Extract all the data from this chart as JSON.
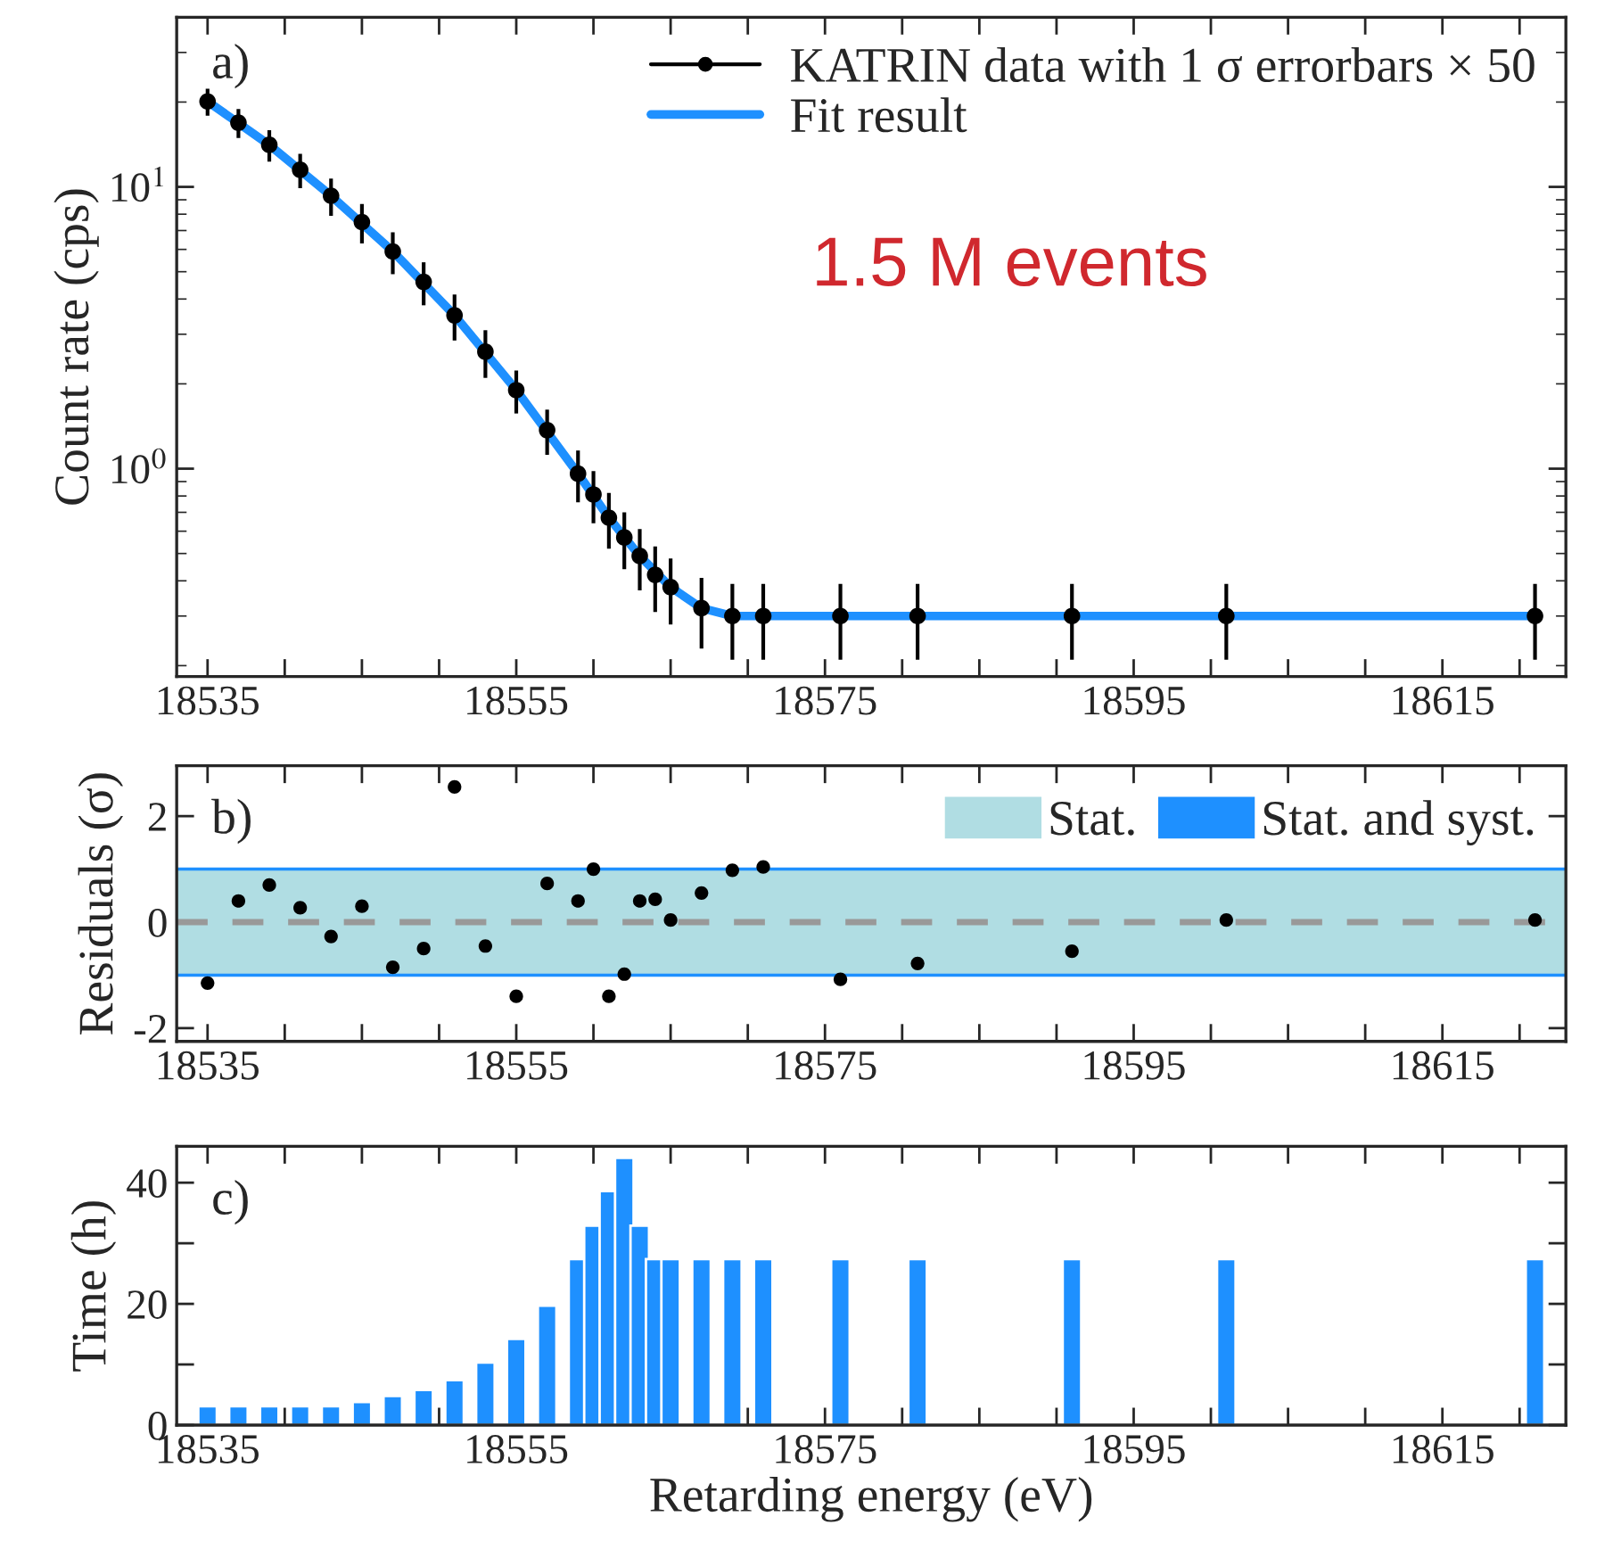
{
  "chart_data": [
    {
      "type": "scatter",
      "ylabel": "Count rate (cps)",
      "log": "y",
      "legend": "top right",
      "xlim": [
        18533,
        18623
      ],
      "xticks": [
        18535,
        {
          "value": 18540,
          "label": null
        },
        {
          "value": 18545,
          "label": null
        },
        {
          "value": 18550,
          "label": null
        },
        18555,
        {
          "value": 18560,
          "label": null
        },
        {
          "value": 18565,
          "label": null
        },
        {
          "value": 18570,
          "label": null
        },
        18575,
        {
          "value": 18580,
          "label": null
        },
        {
          "value": 18585,
          "label": null
        },
        {
          "value": 18590,
          "label": null
        },
        18595,
        {
          "value": 18600,
          "label": null
        },
        {
          "value": 18605,
          "label": null
        },
        {
          "value": 18610,
          "label": null
        },
        18615,
        {
          "value": 18620,
          "label": null
        }
      ],
      "ylim": [
        0.183,
        40
      ],
      "yticks": [
        {
          "value": 1,
          "label": "10$^{0}$"
        },
        {
          "value": 10,
          "label": "10$^{1}$"
        }
      ],
      "annotations": [
        "a)",
        "1.5 M events"
      ],
      "series": [
        {
          "name": "KATRIN data with 1 σ errorbars × 50",
          "type": "scatter",
          "marker": "circle",
          "color": "#000000",
          "x": [
            18535,
            18537,
            18539,
            18541,
            18543,
            18545,
            18547,
            18549,
            18551,
            18553,
            18555,
            18557,
            18559,
            18560,
            18561,
            18562,
            18563,
            18564,
            18565,
            18567,
            18569,
            18571,
            18576,
            18581,
            18591,
            18601,
            18621
          ],
          "values": [
            20.1,
            16.9,
            14.1,
            11.5,
            9.3,
            7.5,
            5.9,
            4.6,
            3.5,
            2.6,
            1.9,
            1.37,
            0.96,
            0.81,
            0.67,
            0.57,
            0.49,
            0.42,
            0.38,
            0.32,
            0.3,
            0.3,
            0.3,
            0.3,
            0.3,
            0.3,
            0.3
          ],
          "errors": [
            2.2,
            2.0,
            1.8,
            1.6,
            1.4,
            1.2,
            1.0,
            0.8,
            0.65,
            0.5,
            0.33,
            0.25,
            0.2,
            0.17,
            0.15,
            0.13,
            0.12,
            0.11,
            0.1,
            0.09,
            0.09,
            0.09,
            0.09,
            0.09,
            0.09,
            0.09,
            0.09
          ]
        },
        {
          "name": "Fit result",
          "type": "line",
          "color": "#1e90ff",
          "x": [
            18535,
            18539,
            18543,
            18547,
            18551,
            18555,
            18559,
            18561,
            18563,
            18565,
            18567,
            18569,
            18571,
            18621
          ],
          "values": [
            20.1,
            14.1,
            9.3,
            5.9,
            3.5,
            1.9,
            0.96,
            0.67,
            0.49,
            0.38,
            0.32,
            0.3,
            0.3,
            0.3
          ]
        }
      ]
    },
    {
      "type": "scatter",
      "ylabel": "Residuals (σ)",
      "legend": "top right",
      "xlim": [
        18533,
        18623
      ],
      "xticks": [
        18535,
        {
          "value": 18540,
          "label": null
        },
        {
          "value": 18545,
          "label": null
        },
        {
          "value": 18550,
          "label": null
        },
        18555,
        {
          "value": 18560,
          "label": null
        },
        {
          "value": 18565,
          "label": null
        },
        {
          "value": 18570,
          "label": null
        },
        18575,
        {
          "value": 18580,
          "label": null
        },
        {
          "value": 18585,
          "label": null
        },
        {
          "value": 18590,
          "label": null
        },
        18595,
        {
          "value": 18600,
          "label": null
        },
        {
          "value": 18605,
          "label": null
        },
        {
          "value": 18610,
          "label": null
        },
        18615,
        {
          "value": 18620,
          "label": null
        }
      ],
      "ylim": [
        -2.25,
        2.95
      ],
      "yticks": [
        -2,
        {
          "value": -1,
          "label": null
        },
        0,
        {
          "value": 1,
          "label": null
        },
        2
      ],
      "annotations": [
        "b)"
      ],
      "bands": [
        {
          "axis": "y",
          "from": -0.97,
          "to": 0.97,
          "label": "Stat.",
          "color": "#b0dde3"
        },
        {
          "axis": "y",
          "from": -1.03,
          "to": 1.03,
          "label": "Stat. and syst.",
          "color": "#1e90ff"
        }
      ],
      "ref_lines": [
        {
          "axis": "y",
          "value": 0,
          "color": "#999999",
          "line_style": "dashed"
        }
      ],
      "series": [
        {
          "type": "scatter",
          "color": "#000000",
          "x": [
            18535,
            18537,
            18539,
            18541,
            18543,
            18545,
            18547,
            18549,
            18551,
            18553,
            18555,
            18557,
            18559,
            18560,
            18561,
            18562,
            18563,
            18564,
            18565,
            18567,
            18569,
            18571,
            18576,
            18581,
            18591,
            18601,
            18621
          ],
          "values": [
            -1.15,
            0.4,
            0.7,
            0.27,
            -0.27,
            0.3,
            -0.85,
            -0.5,
            2.55,
            -0.45,
            -1.4,
            0.73,
            0.4,
            1.0,
            -1.4,
            -0.98,
            0.4,
            0.43,
            0.04,
            0.55,
            0.98,
            1.04,
            -1.08,
            -0.78,
            -0.55,
            0.04,
            0.04
          ]
        }
      ]
    },
    {
      "type": "bar",
      "ylabel": "Time (h)",
      "xlabel": "Retarding energy (eV)",
      "xlim": [
        18533,
        18623
      ],
      "xticks": [
        18535,
        {
          "value": 18540,
          "label": null
        },
        {
          "value": 18545,
          "label": null
        },
        {
          "value": 18550,
          "label": null
        },
        18555,
        {
          "value": 18560,
          "label": null
        },
        {
          "value": 18565,
          "label": null
        },
        {
          "value": 18570,
          "label": null
        },
        18575,
        {
          "value": 18580,
          "label": null
        },
        {
          "value": 18585,
          "label": null
        },
        {
          "value": 18590,
          "label": null
        },
        18595,
        {
          "value": 18600,
          "label": null
        },
        {
          "value": 18605,
          "label": null
        },
        {
          "value": 18610,
          "label": null
        },
        18615,
        {
          "value": 18620,
          "label": null
        }
      ],
      "ylim": [
        0,
        46
      ],
      "yticks": [
        0,
        {
          "value": 10,
          "label": null
        },
        20,
        {
          "value": 30,
          "label": null
        },
        40
      ],
      "annotations": [
        "c)"
      ],
      "series": [
        {
          "type": "bar",
          "color": "#1e90ff",
          "x": [
            18535,
            18537,
            18539,
            18541,
            18543,
            18545,
            18547,
            18549,
            18551,
            18553,
            18555,
            18557,
            18559,
            18560,
            18561,
            18562,
            18563,
            18564,
            18565,
            18567,
            18569,
            18571,
            18576,
            18581,
            18591,
            18601,
            18621
          ],
          "values": [
            3.1,
            3.1,
            3.1,
            3.1,
            3.1,
            3.8,
            4.8,
            5.8,
            7.4,
            10.3,
            14.2,
            19.7,
            27.4,
            32.9,
            38.6,
            44.1,
            32.9,
            27.4,
            27.4,
            27.4,
            27.4,
            27.4,
            27.4,
            27.4,
            27.4,
            27.4,
            27.4
          ]
        }
      ]
    }
  ]
}
